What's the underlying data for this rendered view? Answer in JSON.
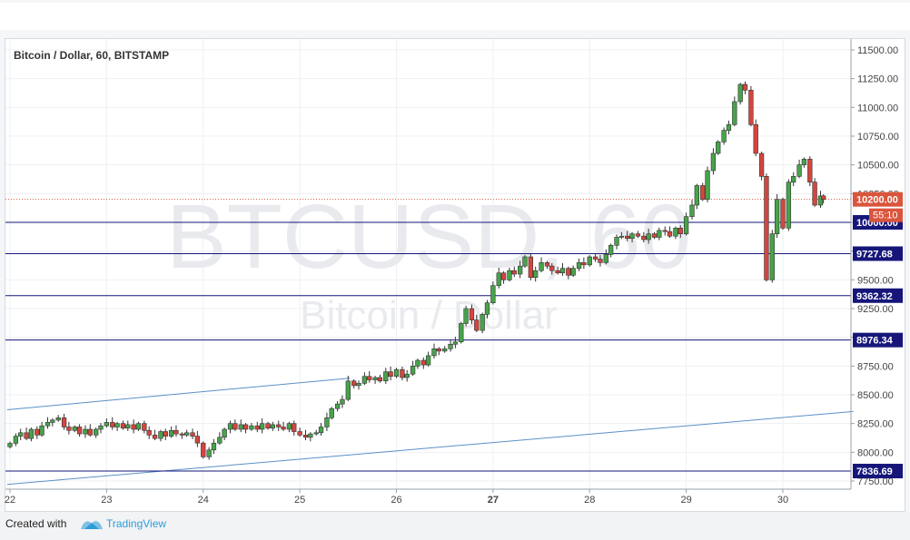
{
  "footer": {
    "created_with": "Created with",
    "brand": "TradingView"
  },
  "chart_data": {
    "type": "candlestick",
    "title": "Bitcoin / Dollar, 60, BITSTAMP",
    "watermark": "BTCUSD, 60",
    "watermark_sub": "Bitcoin / Dollar",
    "x_ticks": [
      "22",
      "23",
      "24",
      "25",
      "26",
      "27",
      "28",
      "29",
      "30"
    ],
    "y_ticks": [
      7750,
      8000,
      8250,
      8500,
      8750,
      9000,
      9250,
      9500,
      9750,
      10000,
      10250,
      10500,
      10750,
      11000,
      11250,
      11500
    ],
    "ylim": [
      7690,
      11570
    ],
    "xlim": [
      21.97,
      30.73
    ],
    "last_price": "10200.00",
    "countdown": "55:10",
    "levels": [
      {
        "value": 10000.0,
        "label": "10000.00"
      },
      {
        "value": 9727.68,
        "label": "9727.68"
      },
      {
        "value": 9362.32,
        "label": "9362.32"
      },
      {
        "value": 8976.34,
        "label": "8976.34"
      },
      {
        "value": 7836.69,
        "label": "7836.69"
      }
    ],
    "trendlines": [
      {
        "x1": 21.97,
        "y1": 8370,
        "x2": 25.52,
        "y2": 8645
      },
      {
        "x1": 21.97,
        "y1": 7720,
        "x2": 30.73,
        "y2": 8355
      }
    ],
    "candles": [
      {
        "x": 22.0,
        "c": 8078
      },
      {
        "x": 22.06,
        "c": 8140
      },
      {
        "x": 22.11,
        "c": 8170
      },
      {
        "x": 22.17,
        "c": 8120
      },
      {
        "x": 22.22,
        "c": 8200
      },
      {
        "x": 22.28,
        "c": 8150
      },
      {
        "x": 22.33,
        "c": 8230
      },
      {
        "x": 22.39,
        "c": 8260
      },
      {
        "x": 22.44,
        "c": 8280
      },
      {
        "x": 22.5,
        "c": 8300
      },
      {
        "x": 22.56,
        "c": 8220
      },
      {
        "x": 22.61,
        "c": 8190
      },
      {
        "x": 22.67,
        "c": 8220
      },
      {
        "x": 22.72,
        "c": 8160
      },
      {
        "x": 22.78,
        "c": 8200
      },
      {
        "x": 22.83,
        "c": 8150
      },
      {
        "x": 22.89,
        "c": 8200
      },
      {
        "x": 22.94,
        "c": 8230
      },
      {
        "x": 23.0,
        "c": 8260
      },
      {
        "x": 23.06,
        "c": 8220
      },
      {
        "x": 23.11,
        "c": 8250
      },
      {
        "x": 23.17,
        "c": 8210
      },
      {
        "x": 23.22,
        "c": 8240
      },
      {
        "x": 23.28,
        "c": 8200
      },
      {
        "x": 23.33,
        "c": 8250
      },
      {
        "x": 23.39,
        "c": 8190
      },
      {
        "x": 23.44,
        "c": 8150
      },
      {
        "x": 23.5,
        "c": 8120
      },
      {
        "x": 23.56,
        "c": 8180
      },
      {
        "x": 23.61,
        "c": 8140
      },
      {
        "x": 23.67,
        "c": 8190
      },
      {
        "x": 23.72,
        "c": 8160
      },
      {
        "x": 23.78,
        "c": 8150
      },
      {
        "x": 23.83,
        "c": 8170
      },
      {
        "x": 23.89,
        "c": 8140
      },
      {
        "x": 23.94,
        "c": 8080
      },
      {
        "x": 24.0,
        "c": 7960
      },
      {
        "x": 24.06,
        "c": 8020
      },
      {
        "x": 24.11,
        "c": 8080
      },
      {
        "x": 24.17,
        "c": 8130
      },
      {
        "x": 24.22,
        "c": 8200
      },
      {
        "x": 24.28,
        "c": 8250
      },
      {
        "x": 24.33,
        "c": 8200
      },
      {
        "x": 24.39,
        "c": 8240
      },
      {
        "x": 24.44,
        "c": 8200
      },
      {
        "x": 24.5,
        "c": 8230
      },
      {
        "x": 24.56,
        "c": 8200
      },
      {
        "x": 24.61,
        "c": 8250
      },
      {
        "x": 24.67,
        "c": 8210
      },
      {
        "x": 24.72,
        "c": 8240
      },
      {
        "x": 24.78,
        "c": 8220
      },
      {
        "x": 24.83,
        "c": 8200
      },
      {
        "x": 24.89,
        "c": 8250
      },
      {
        "x": 24.94,
        "c": 8180
      },
      {
        "x": 25.0,
        "c": 8150
      },
      {
        "x": 25.06,
        "c": 8130
      },
      {
        "x": 25.11,
        "c": 8160
      },
      {
        "x": 25.17,
        "c": 8170
      },
      {
        "x": 25.22,
        "c": 8220
      },
      {
        "x": 25.28,
        "c": 8300
      },
      {
        "x": 25.33,
        "c": 8380
      },
      {
        "x": 25.39,
        "c": 8420
      },
      {
        "x": 25.44,
        "c": 8460
      },
      {
        "x": 25.5,
        "c": 8620
      },
      {
        "x": 25.56,
        "c": 8580
      },
      {
        "x": 25.61,
        "c": 8600
      },
      {
        "x": 25.67,
        "c": 8660
      },
      {
        "x": 25.72,
        "c": 8630
      },
      {
        "x": 25.78,
        "c": 8650
      },
      {
        "x": 25.83,
        "c": 8620
      },
      {
        "x": 25.89,
        "c": 8700
      },
      {
        "x": 25.94,
        "c": 8660
      },
      {
        "x": 26.0,
        "c": 8720
      },
      {
        "x": 26.06,
        "c": 8650
      },
      {
        "x": 26.11,
        "c": 8680
      },
      {
        "x": 26.17,
        "c": 8750
      },
      {
        "x": 26.22,
        "c": 8800
      },
      {
        "x": 26.28,
        "c": 8760
      },
      {
        "x": 26.33,
        "c": 8840
      },
      {
        "x": 26.39,
        "c": 8900
      },
      {
        "x": 26.44,
        "c": 8880
      },
      {
        "x": 26.5,
        "c": 8900
      },
      {
        "x": 26.56,
        "c": 8940
      },
      {
        "x": 26.61,
        "c": 8960
      },
      {
        "x": 26.67,
        "c": 9120
      },
      {
        "x": 26.72,
        "c": 9250
      },
      {
        "x": 26.78,
        "c": 9150
      },
      {
        "x": 26.83,
        "c": 9060
      },
      {
        "x": 26.89,
        "c": 9200
      },
      {
        "x": 26.94,
        "c": 9300
      },
      {
        "x": 27.0,
        "c": 9450
      },
      {
        "x": 27.06,
        "c": 9560
      },
      {
        "x": 27.11,
        "c": 9500
      },
      {
        "x": 27.17,
        "c": 9580
      },
      {
        "x": 27.22,
        "c": 9550
      },
      {
        "x": 27.28,
        "c": 9620
      },
      {
        "x": 27.33,
        "c": 9700
      },
      {
        "x": 27.39,
        "c": 9520
      },
      {
        "x": 27.44,
        "c": 9580
      },
      {
        "x": 27.5,
        "c": 9650
      },
      {
        "x": 27.56,
        "c": 9620
      },
      {
        "x": 27.61,
        "c": 9580
      },
      {
        "x": 27.67,
        "c": 9560
      },
      {
        "x": 27.72,
        "c": 9600
      },
      {
        "x": 27.78,
        "c": 9540
      },
      {
        "x": 27.83,
        "c": 9600
      },
      {
        "x": 27.89,
        "c": 9650
      },
      {
        "x": 27.94,
        "c": 9630
      },
      {
        "x": 28.0,
        "c": 9700
      },
      {
        "x": 28.06,
        "c": 9680
      },
      {
        "x": 28.11,
        "c": 9650
      },
      {
        "x": 28.17,
        "c": 9720
      },
      {
        "x": 28.22,
        "c": 9800
      },
      {
        "x": 28.28,
        "c": 9870
      },
      {
        "x": 28.33,
        "c": 9880
      },
      {
        "x": 28.39,
        "c": 9860
      },
      {
        "x": 28.44,
        "c": 9900
      },
      {
        "x": 28.5,
        "c": 9880
      },
      {
        "x": 28.56,
        "c": 9850
      },
      {
        "x": 28.61,
        "c": 9900
      },
      {
        "x": 28.67,
        "c": 9870
      },
      {
        "x": 28.72,
        "c": 9930
      },
      {
        "x": 28.78,
        "c": 9920
      },
      {
        "x": 28.83,
        "c": 9880
      },
      {
        "x": 28.89,
        "c": 9950
      },
      {
        "x": 28.94,
        "c": 9900
      },
      {
        "x": 29.0,
        "c": 10050
      },
      {
        "x": 29.06,
        "c": 10150
      },
      {
        "x": 29.11,
        "c": 10320
      },
      {
        "x": 29.17,
        "c": 10200
      },
      {
        "x": 29.22,
        "c": 10450
      },
      {
        "x": 29.28,
        "c": 10600
      },
      {
        "x": 29.33,
        "c": 10700
      },
      {
        "x": 29.39,
        "c": 10800
      },
      {
        "x": 29.44,
        "c": 10850
      },
      {
        "x": 29.5,
        "c": 11050
      },
      {
        "x": 29.56,
        "c": 11200
      },
      {
        "x": 29.61,
        "c": 11150
      },
      {
        "x": 29.67,
        "c": 10850
      },
      {
        "x": 29.72,
        "c": 10600
      },
      {
        "x": 29.78,
        "c": 10400
      },
      {
        "x": 29.83,
        "c": 9500
      },
      {
        "x": 29.89,
        "c": 9900
      },
      {
        "x": 29.94,
        "c": 10200
      },
      {
        "x": 30.0,
        "c": 9950
      },
      {
        "x": 30.06,
        "c": 10350
      },
      {
        "x": 30.11,
        "c": 10400
      },
      {
        "x": 30.17,
        "c": 10500
      },
      {
        "x": 30.22,
        "c": 10550
      },
      {
        "x": 30.28,
        "c": 10350
      },
      {
        "x": 30.33,
        "c": 10150
      },
      {
        "x": 30.39,
        "c": 10230
      },
      {
        "x": 30.42,
        "c": 10200
      }
    ]
  }
}
